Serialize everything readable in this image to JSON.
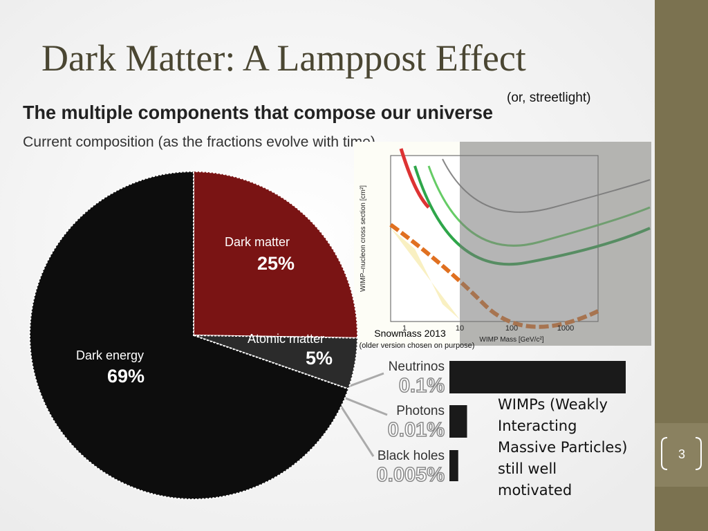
{
  "slide": {
    "title": "Dark Matter: A Lamppost Effect",
    "subtitle": "(or, streetlight)",
    "note": "WIMPs (Weakly Interacting Massive Particles) still well motivated",
    "page_number": "3"
  },
  "chart_data": [
    {
      "type": "pie",
      "title": "The multiple components that compose our universe",
      "subtitle": "Current composition (as the fractions evolve with time)",
      "categories": [
        "Dark matter",
        "Atomic matter",
        "Dark energy"
      ],
      "values": [
        25,
        5,
        69
      ],
      "value_labels": [
        "25%",
        "5%",
        "69%"
      ],
      "colors": [
        "#7a1414",
        "#2b2b2b",
        "#0d0d0d"
      ]
    },
    {
      "type": "bar",
      "categories": [
        "Neutrinos",
        "Photons",
        "Black holes"
      ],
      "values": [
        0.1,
        0.01,
        0.005
      ],
      "value_labels": [
        "0.1%",
        "0.01%",
        "0.005%"
      ],
      "color": "#1a1a1a"
    }
  ],
  "figure": {
    "caption": "Snowmass 2013",
    "note": "(older version chosen on purpose)",
    "x_label": "WIMP Mass [GeV/c²]",
    "y_label": "WIMP–nucleon cross section [cm²]",
    "x_ticks": [
      "1",
      "10",
      "100",
      "1000"
    ]
  }
}
